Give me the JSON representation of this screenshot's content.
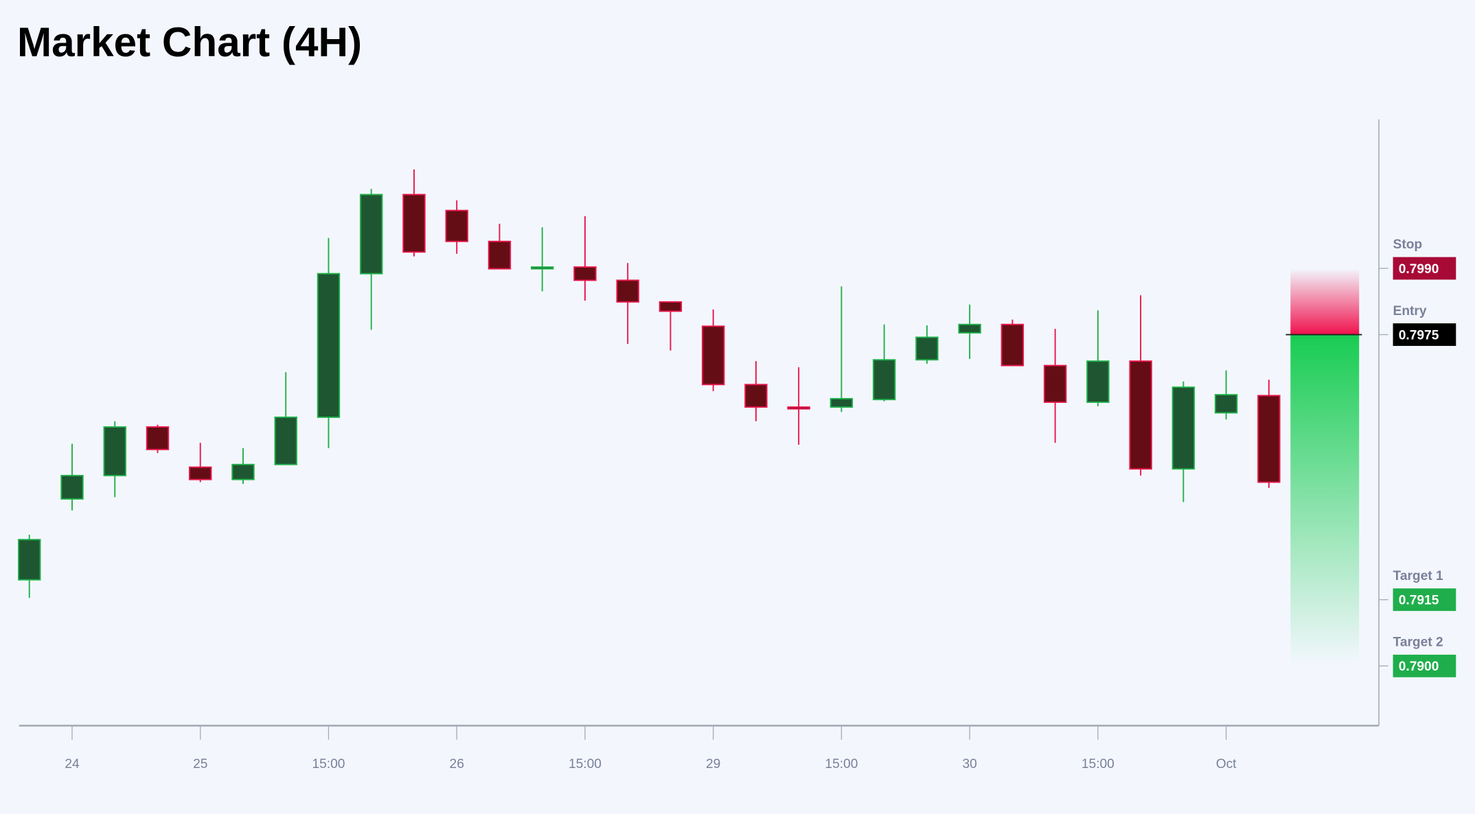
{
  "chart_data": {
    "type": "candlestick",
    "title": "Market Chart (4H)",
    "xlabel": "",
    "ylabel": "",
    "x_tick_labels": [
      "24",
      "25",
      "15:00",
      "26",
      "15:00",
      "29",
      "15:00",
      "30",
      "15:00",
      "Oct"
    ],
    "x_tick_candle_index": [
      1,
      4,
      7,
      10,
      13,
      16,
      19,
      22,
      25,
      28
    ],
    "grid": false,
    "colors": {
      "background": "#f3f7fd",
      "up_fill": "#1e5631",
      "up_stroke": "#22b04b",
      "down_fill": "#650d14",
      "down_stroke": "#e8174d",
      "axis": "#a8acb8"
    },
    "candles": [
      {
        "o": 0.79195,
        "h": 0.79297,
        "l": 0.79154,
        "c": 0.79286
      },
      {
        "o": 0.79378,
        "h": 0.79503,
        "l": 0.79352,
        "c": 0.79431
      },
      {
        "o": 0.79431,
        "h": 0.79554,
        "l": 0.79382,
        "c": 0.79541
      },
      {
        "o": 0.79541,
        "h": 0.79546,
        "l": 0.79482,
        "c": 0.7949
      },
      {
        "o": 0.7945,
        "h": 0.79505,
        "l": 0.79416,
        "c": 0.79422
      },
      {
        "o": 0.79422,
        "h": 0.79493,
        "l": 0.79412,
        "c": 0.79456
      },
      {
        "o": 0.79456,
        "h": 0.79665,
        "l": 0.79456,
        "c": 0.79563
      },
      {
        "o": 0.79563,
        "h": 0.79969,
        "l": 0.79493,
        "c": 0.79888
      },
      {
        "o": 0.79888,
        "h": 0.8008,
        "l": 0.79761,
        "c": 0.80067
      },
      {
        "o": 0.80067,
        "h": 0.80124,
        "l": 0.79927,
        "c": 0.79937
      },
      {
        "o": 0.80031,
        "h": 0.80054,
        "l": 0.79933,
        "c": 0.79961
      },
      {
        "o": 0.79961,
        "h": 0.80001,
        "l": 0.79899,
        "c": 0.79899
      },
      {
        "o": 0.79899,
        "h": 0.79993,
        "l": 0.79848,
        "c": 0.79903
      },
      {
        "o": 0.79903,
        "h": 0.80018,
        "l": 0.79827,
        "c": 0.79873
      },
      {
        "o": 0.79873,
        "h": 0.79912,
        "l": 0.79729,
        "c": 0.79824
      },
      {
        "o": 0.79824,
        "h": 0.79824,
        "l": 0.79714,
        "c": 0.79803
      },
      {
        "o": 0.79769,
        "h": 0.79807,
        "l": 0.79622,
        "c": 0.79637
      },
      {
        "o": 0.79637,
        "h": 0.7969,
        "l": 0.79554,
        "c": 0.79586
      },
      {
        "o": 0.79586,
        "h": 0.79676,
        "l": 0.79501,
        "c": 0.79582
      },
      {
        "o": 0.79586,
        "h": 0.79859,
        "l": 0.79575,
        "c": 0.79605
      },
      {
        "o": 0.79603,
        "h": 0.79773,
        "l": 0.79599,
        "c": 0.79693
      },
      {
        "o": 0.79693,
        "h": 0.79771,
        "l": 0.79684,
        "c": 0.79744
      },
      {
        "o": 0.79754,
        "h": 0.79818,
        "l": 0.79695,
        "c": 0.79773
      },
      {
        "o": 0.79773,
        "h": 0.79784,
        "l": 0.7968,
        "c": 0.7968
      },
      {
        "o": 0.7968,
        "h": 0.79763,
        "l": 0.79505,
        "c": 0.79597
      },
      {
        "o": 0.79597,
        "h": 0.79805,
        "l": 0.79588,
        "c": 0.7969
      },
      {
        "o": 0.7969,
        "h": 0.79839,
        "l": 0.79431,
        "c": 0.79446
      },
      {
        "o": 0.79446,
        "h": 0.79644,
        "l": 0.79371,
        "c": 0.79631
      },
      {
        "o": 0.79573,
        "h": 0.79669,
        "l": 0.79558,
        "c": 0.79614
      },
      {
        "o": 0.79612,
        "h": 0.79648,
        "l": 0.79403,
        "c": 0.79416
      }
    ],
    "levels": [
      {
        "label": "Stop",
        "value": 0.799,
        "text": "0.7990",
        "color": "#a80a36"
      },
      {
        "label": "Entry",
        "value": 0.7975,
        "text": "0.7975",
        "color": "#000000"
      },
      {
        "label": "Target 1",
        "value": 0.7915,
        "text": "0.7915",
        "color": "#1fae4b"
      },
      {
        "label": "Target 2",
        "value": 0.79,
        "text": "0.7900",
        "color": "#1fae4b"
      }
    ],
    "risk_zone_color": "#f0124d",
    "reward_zone_color": "#18cc52"
  }
}
